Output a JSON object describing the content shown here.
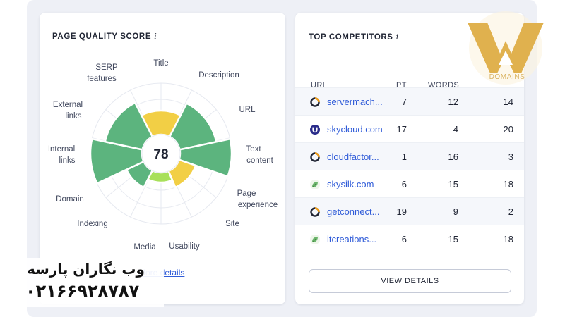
{
  "quality": {
    "title": "PAGE QUALITY SCORE",
    "info_icon": "i",
    "score": "78",
    "labels": {
      "title": "Title",
      "description": "Description",
      "url": "URL",
      "text_content_1": "Text",
      "text_content_2": "content",
      "page_experience_1": "Page",
      "page_experience_2": "experience",
      "site": "Site",
      "usability": "Usability",
      "media": "Media",
      "indexing": "Indexing",
      "domain": "Domain",
      "internal_links_1": "Internal",
      "internal_links_2": "links",
      "external_links_1": "External",
      "external_links_2": "links",
      "serp_features_1": "SERP",
      "serp_features_2": "features"
    },
    "more_link": "More details",
    "colors": {
      "good": "#5cb47e",
      "medium": "#f2cf45",
      "light": "#a8e05a"
    }
  },
  "competitors": {
    "title": "TOP COMPETITORS",
    "info_icon": "i",
    "columns": {
      "url": "URL",
      "pt": "PT",
      "words": "WORDS",
      "last": ""
    },
    "rows": [
      {
        "url": "servermach...",
        "pt": "7",
        "words": "12",
        "last": "14",
        "icon": "ring-icon"
      },
      {
        "url": "skycloud.com",
        "pt": "17",
        "words": "4",
        "last": "20",
        "icon": "u-circle-icon"
      },
      {
        "url": "cloudfactor...",
        "pt": "1",
        "words": "16",
        "last": "3",
        "icon": "ring-icon"
      },
      {
        "url": "skysilk.com",
        "pt": "6",
        "words": "15",
        "last": "18",
        "icon": "leaf-icon"
      },
      {
        "url": "getconnect...",
        "pt": "19",
        "words": "9",
        "last": "2",
        "icon": "ring-icon"
      },
      {
        "url": "itcreations...",
        "pt": "6",
        "words": "15",
        "last": "18",
        "icon": "leaf-icon"
      }
    ],
    "view_button": "VIEW DETAILS"
  },
  "watermark": {
    "logo_text": "DOMAINS",
    "name": "وب نگاران پارسه",
    "phone": "۰۲۱۶۶۹۲۸۷۸۷"
  }
}
